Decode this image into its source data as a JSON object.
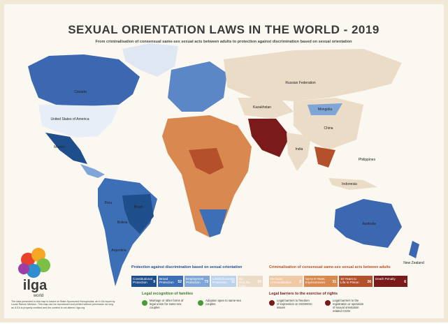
{
  "header": {
    "title": "SEXUAL ORIENTATION LAWS IN THE WORLD - 2019",
    "subtitle": "From criminalisation of consensual same-sex sexual acts between adults to protection against discrimination based on sexual orientation"
  },
  "map": {
    "countries": [
      "Canada",
      "United States of America",
      "Mexico",
      "Brazil",
      "Bolivia",
      "Peru",
      "Argentina",
      "Russian Federation",
      "Kazakhstan",
      "Mongolia",
      "China",
      "India",
      "Indonesia",
      "Philippines",
      "Australia",
      "New Zealand"
    ]
  },
  "legend": {
    "protection": {
      "title": "Protection against discrimination based on sexual orientation",
      "items": [
        {
          "label": "Constitutional Protection",
          "count": 9
        },
        {
          "label": "Broad Protection",
          "count": 52
        },
        {
          "label": "Employment Protection",
          "count": 73
        },
        {
          "label": "Limited/Uneven Protection",
          "count": 11
        },
        {
          "label": "No Prot./No Crim.",
          "count": 50
        }
      ]
    },
    "criminalisation": {
      "title": "Criminalisation of consensual same-sex sexual acts between adults",
      "items": [
        {
          "label": "De facto Criminalisation",
          "count": 2
        },
        {
          "label": "Up to 8 Years Imprisonment",
          "count": 31
        },
        {
          "label": "10 Years to Life in Prison",
          "count": 26
        },
        {
          "label": "Death Penalty",
          "count": 6
        }
      ]
    },
    "families": {
      "title": "Legal recognition of families",
      "items": [
        "Marriage or other forms of legal union for same-sex couples",
        "Adoption open to same-sex couples"
      ]
    },
    "barriers": {
      "title": "Legal barriers to the exercise of rights",
      "items": [
        "Legal barriers to freedom of expression on SOGIESC issues",
        "Legal barriers to the registration or operation of sexual orientation related CSOs"
      ]
    }
  },
  "logo": {
    "name": "ilga",
    "tagline": "world"
  },
  "footnote": "The data presented in this map is based on State-Sponsored Homophobia, an ILGA report by Lucas Ramón Mendos. This map can be reproduced and printed without permission as long as ILGA is properly credited and the content is not altered. ilga.org"
}
